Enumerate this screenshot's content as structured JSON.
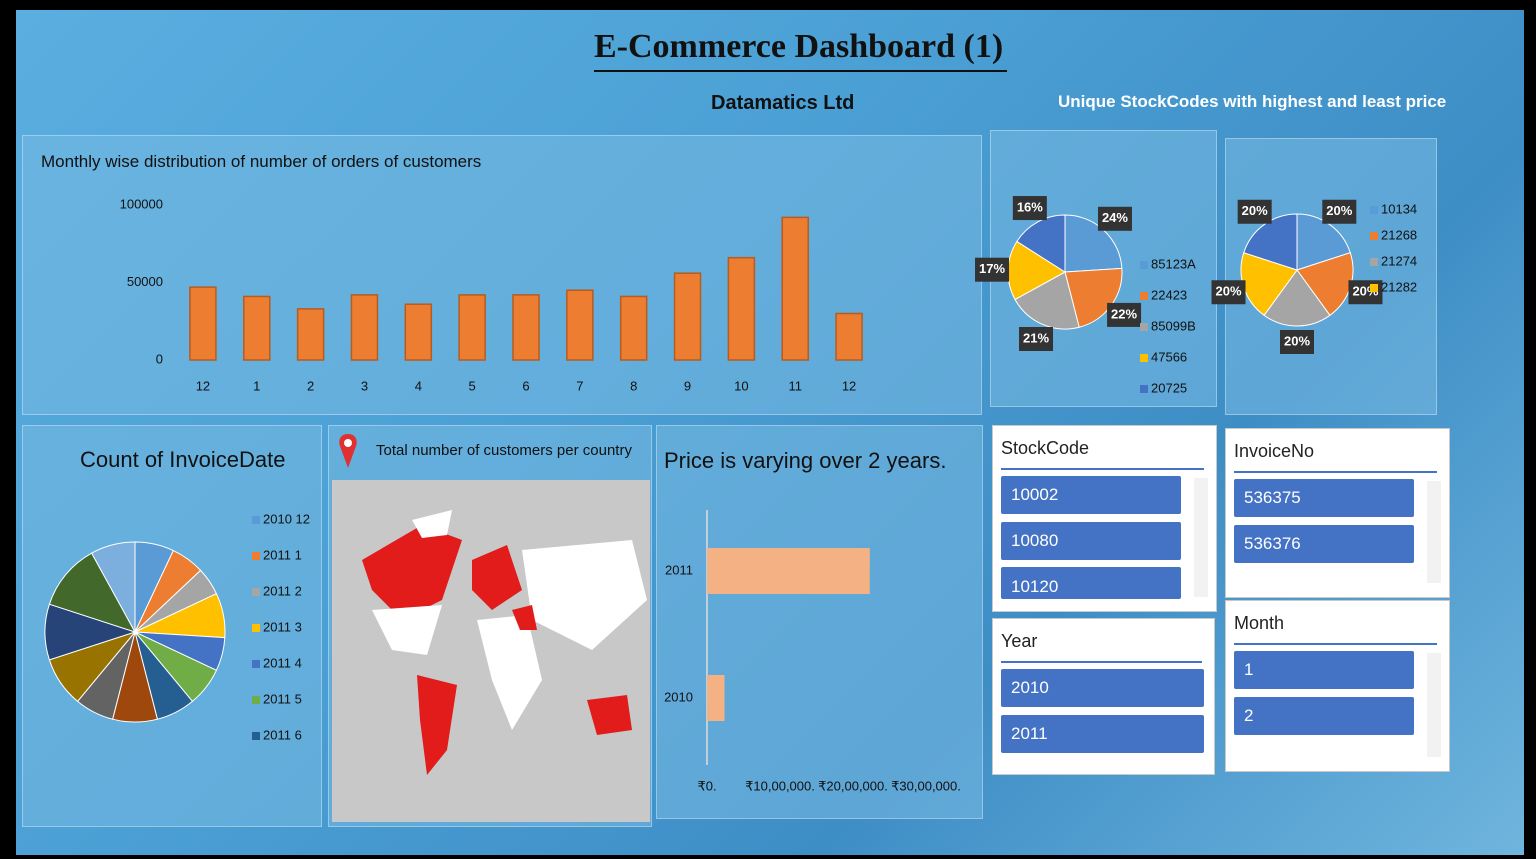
{
  "header": {
    "title": "E-Commerce Dashboard (1)",
    "subtitle": "Datamatics Ltd",
    "pies_title": "Unique StockCodes with highest and least price"
  },
  "map": {
    "title": "Total number of customers per country"
  },
  "chart_data": [
    {
      "type": "bar",
      "title": "Monthly wise distribution of number of orders of customers",
      "categories": [
        "12",
        "1",
        "2",
        "3",
        "4",
        "5",
        "6",
        "7",
        "8",
        "9",
        "10",
        "11",
        "12"
      ],
      "values": [
        47000,
        41000,
        33000,
        42000,
        36000,
        42000,
        42000,
        45000,
        41000,
        56000,
        66000,
        92000,
        30000
      ],
      "color": "#ed7d31",
      "ylim": [
        0,
        100000
      ],
      "yticks": [
        0,
        50000,
        100000
      ]
    },
    {
      "type": "pie",
      "categories": [
        "85123A",
        "22423",
        "85099B",
        "47566",
        "20725"
      ],
      "values": [
        24,
        22,
        21,
        17,
        16
      ],
      "value_labels": [
        "24%",
        "22%",
        "21%",
        "17%",
        "16%"
      ],
      "colors": [
        "#5b9bd5",
        "#ed7d31",
        "#a5a5a5",
        "#ffc000",
        "#4472c4"
      ]
    },
    {
      "type": "pie",
      "categories": [
        "10134",
        "21268",
        "21274",
        "21282",
        null
      ],
      "values": [
        20,
        20,
        20,
        20,
        20
      ],
      "value_labels": [
        "20%",
        "20%",
        "20%",
        "20%",
        "20%"
      ],
      "colors": [
        "#5b9bd5",
        "#ed7d31",
        "#a5a5a5",
        "#ffc000",
        "#4472c4"
      ]
    },
    {
      "type": "pie",
      "title": "Count of InvoiceDate",
      "categories": [
        "2010 12",
        "2011 1",
        "2011 2",
        "2011 3",
        "2011 4",
        "2011 5",
        "2011 6",
        null,
        null,
        null,
        null,
        null,
        null
      ],
      "values": [
        7,
        6,
        5,
        8,
        6,
        7,
        7,
        8,
        7,
        9,
        10,
        12,
        8
      ],
      "colors": [
        "#5b9bd5",
        "#ed7d31",
        "#a5a5a5",
        "#ffc000",
        "#4472c4",
        "#70ad47",
        "#255e91",
        "#9e480e",
        "#636363",
        "#997300",
        "#264478",
        "#43682b",
        "#7cafdd"
      ]
    },
    {
      "type": "hbar",
      "title": "Price is varying over 2 years.",
      "categories": [
        "2011",
        "2010"
      ],
      "values": [
        2230000,
        240000
      ],
      "color": "#f4b183",
      "xlim": [
        0,
        3000000
      ],
      "xticks": [
        {
          "value": 0,
          "label": "₹0."
        },
        {
          "value": 1000000,
          "label": "₹10,00,000."
        },
        {
          "value": 2000000,
          "label": "₹20,00,000."
        },
        {
          "value": 3000000,
          "label": "₹30,00,000."
        }
      ]
    }
  ],
  "slicers": [
    {
      "title": "StockCode",
      "items": [
        "10002",
        "10080",
        "10120"
      ]
    },
    {
      "title": "InvoiceNo",
      "items": [
        "536375",
        "536376"
      ]
    },
    {
      "title": "Year",
      "items": [
        "2010",
        "2011"
      ]
    },
    {
      "title": "Month",
      "items": [
        "1",
        "2"
      ]
    }
  ]
}
